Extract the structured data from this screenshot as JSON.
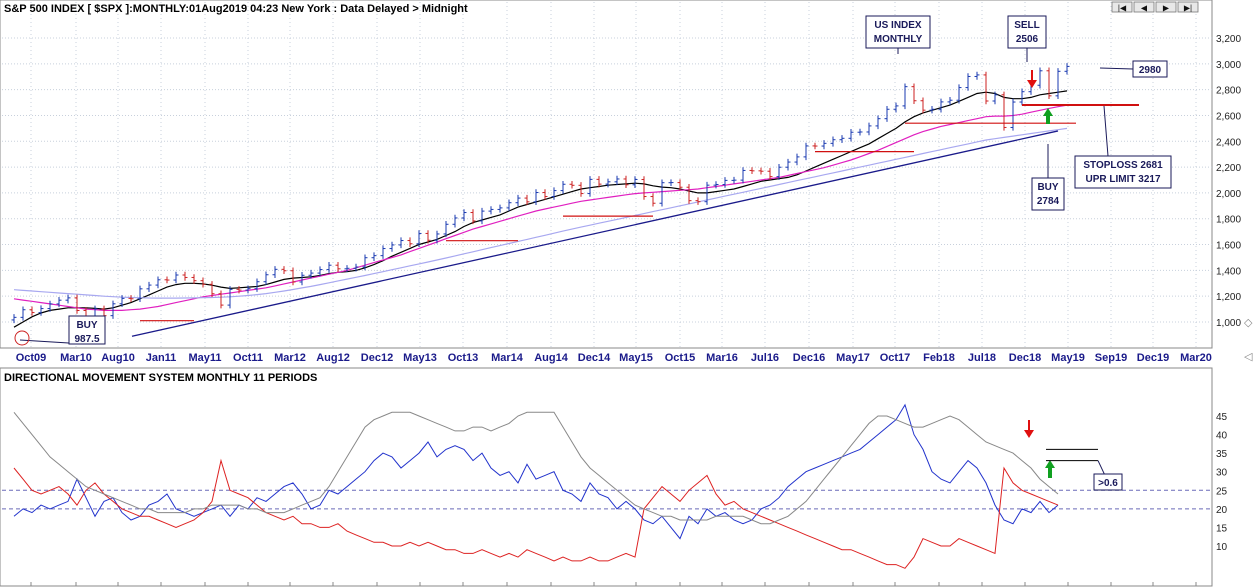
{
  "header": {
    "title": "S&P 500 INDEX [ $SPX ]:MONTHLY:01Aug2019 04:23 New York : Data Delayed > Midnight",
    "nav_buttons": [
      "|◀",
      "◀",
      "▶",
      "▶|"
    ]
  },
  "colors": {
    "price_bars": "#1a3ab0",
    "down_bars": "#cc2222",
    "ma_short": "#000000",
    "ma_mid": "#e020c0",
    "ma_long": "#a8a8f0",
    "trendline": "#1a1a8a",
    "support_lines": "#d01010",
    "dmi_plus": "#2233cc",
    "dmi_minus": "#dd2222",
    "adx": "#888888",
    "grid": "#c8d0dc",
    "box_fill": "#ffffff",
    "box_border": "#1a1a5a"
  },
  "chart_data": [
    {
      "type": "ohlc",
      "title": "S&P 500 INDEX [ $SPX ]:MONTHLY:01Aug2019 04:23 New York : Data Delayed > Midnight",
      "ylim": [
        850,
        3300
      ],
      "y_ticks": [
        "1,000",
        "1,200",
        "1,400",
        "1,600",
        "1,800",
        "2,000",
        "2,200",
        "2,400",
        "2,600",
        "2,800",
        "3,000",
        "3,200"
      ],
      "x_ticks": [
        "Oct09",
        "Mar10",
        "Aug10",
        "Jan11",
        "May11",
        "Oct11",
        "Mar12",
        "Aug12",
        "Dec12",
        "May13",
        "Oct13",
        "Mar14",
        "Aug14",
        "Dec14",
        "May15",
        "Oct15",
        "Mar16",
        "Jul16",
        "Dec16",
        "May17",
        "Oct17",
        "Feb18",
        "Jul18",
        "Dec18",
        "May19",
        "Sep19",
        "Dec19",
        "Mar20"
      ],
      "close": [
        1036,
        1095,
        1073,
        1104,
        1140,
        1169,
        1187,
        1089,
        1031,
        1102,
        1049,
        1141,
        1183,
        1180,
        1257,
        1286,
        1327,
        1325,
        1364,
        1345,
        1320,
        1292,
        1219,
        1131,
        1253,
        1247,
        1258,
        1312,
        1366,
        1408,
        1397,
        1310,
        1362,
        1379,
        1406,
        1440,
        1412,
        1416,
        1426,
        1498,
        1514,
        1569,
        1597,
        1631,
        1606,
        1686,
        1633,
        1682,
        1757,
        1806,
        1848,
        1783,
        1859,
        1872,
        1884,
        1924,
        1960,
        1931,
        2003,
        1972,
        2018,
        2067,
        2059,
        1995,
        2105,
        2068,
        2086,
        2108,
        2063,
        2104,
        1972,
        1920,
        2079,
        2080,
        2044,
        1940,
        1932,
        2060,
        2065,
        2097,
        2099,
        2174,
        2171,
        2168,
        2126,
        2199,
        2239,
        2279,
        2364,
        2363,
        2384,
        2412,
        2423,
        2470,
        2472,
        2519,
        2575,
        2648,
        2674,
        2823,
        2714,
        2641,
        2648,
        2705,
        2718,
        2816,
        2902,
        2914,
        2712,
        2760,
        2507,
        2704,
        2784,
        2834,
        2946,
        2752,
        2942,
        2980
      ],
      "series": [
        {
          "name": "",
          "role": "ma_short",
          "values": [
            960,
            1000,
            1040,
            1070,
            1090,
            1100,
            1110,
            1110,
            1110,
            1105,
            1100,
            1110,
            1130,
            1150,
            1180,
            1210,
            1240,
            1270,
            1290,
            1300,
            1300,
            1295,
            1285,
            1270,
            1260,
            1265,
            1270,
            1275,
            1290,
            1310,
            1330,
            1340,
            1345,
            1350,
            1360,
            1375,
            1385,
            1390,
            1400,
            1420,
            1445,
            1475,
            1510,
            1540,
            1570,
            1600,
            1620,
            1640,
            1670,
            1700,
            1740,
            1770,
            1790,
            1810,
            1830,
            1860,
            1890,
            1910,
            1930,
            1950,
            1970,
            1990,
            2010,
            2030,
            2040,
            2050,
            2060,
            2065,
            2070,
            2075,
            2070,
            2055,
            2045,
            2040,
            2030,
            2015,
            2000,
            2000,
            2010,
            2020,
            2030,
            2050,
            2070,
            2090,
            2100,
            2110,
            2120,
            2140,
            2170,
            2200,
            2230,
            2260,
            2290,
            2320,
            2350,
            2380,
            2420,
            2460,
            2500,
            2550,
            2590,
            2620,
            2640,
            2660,
            2680,
            2710,
            2740,
            2770,
            2780,
            2770,
            2740,
            2730,
            2730,
            2740,
            2760,
            2770,
            2780,
            2790
          ]
        },
        {
          "name": "",
          "role": "ma_mid",
          "values": [
            1180,
            1170,
            1160,
            1150,
            1140,
            1130,
            1120,
            1110,
            1100,
            1095,
            1090,
            1090,
            1090,
            1095,
            1100,
            1110,
            1120,
            1135,
            1150,
            1165,
            1180,
            1195,
            1205,
            1215,
            1225,
            1235,
            1245,
            1255,
            1265,
            1280,
            1295,
            1310,
            1325,
            1340,
            1355,
            1370,
            1385,
            1400,
            1420,
            1440,
            1460,
            1480,
            1500,
            1520,
            1545,
            1570,
            1595,
            1620,
            1645,
            1670,
            1695,
            1720,
            1740,
            1760,
            1780,
            1800,
            1820,
            1840,
            1860,
            1875,
            1890,
            1905,
            1920,
            1935,
            1945,
            1955,
            1965,
            1975,
            1985,
            1995,
            2000,
            2005,
            2010,
            2015,
            2020,
            2025,
            2030,
            2040,
            2050,
            2060,
            2070,
            2080,
            2090,
            2100,
            2110,
            2120,
            2135,
            2150,
            2165,
            2180,
            2195,
            2215,
            2235,
            2255,
            2280,
            2305,
            2330,
            2360,
            2390,
            2420,
            2450,
            2475,
            2495,
            2515,
            2530,
            2545,
            2560,
            2575,
            2590,
            2595,
            2595,
            2600,
            2610,
            2625,
            2640,
            2655,
            2668,
            2680
          ]
        },
        {
          "name": "",
          "role": "ma_long",
          "values": [
            1250,
            1245,
            1240,
            1235,
            1230,
            1225,
            1220,
            1215,
            1210,
            1205,
            1200,
            1196,
            1192,
            1190,
            1188,
            1186,
            1185,
            1185,
            1185,
            1186,
            1187,
            1188,
            1190,
            1192,
            1195,
            1200,
            1205,
            1212,
            1220,
            1230,
            1240,
            1252,
            1264,
            1276,
            1290,
            1304,
            1318,
            1332,
            1346,
            1360,
            1375,
            1390,
            1405,
            1420,
            1435,
            1450,
            1465,
            1480,
            1496,
            1512,
            1528,
            1544,
            1560,
            1576,
            1592,
            1608,
            1624,
            1640,
            1656,
            1672,
            1688,
            1704,
            1720,
            1735,
            1750,
            1765,
            1780,
            1795,
            1810,
            1825,
            1840,
            1855,
            1870,
            1885,
            1900,
            1915,
            1930,
            1945,
            1960,
            1975,
            1990,
            2005,
            2020,
            2035,
            2050,
            2065,
            2080,
            2095,
            2110,
            2125,
            2140,
            2155,
            2170,
            2185,
            2200,
            2215,
            2230,
            2245,
            2260,
            2275,
            2290,
            2305,
            2320,
            2335,
            2350,
            2365,
            2380,
            2395,
            2410,
            2420,
            2430,
            2440,
            2450,
            2460,
            2470,
            2480,
            2490,
            2500
          ]
        }
      ],
      "trendline": {
        "start": [
          0,
          890
        ],
        "end": [
          116,
          2480
        ]
      },
      "support_lines": [
        {
          "from": 14,
          "to": 20,
          "price": 1010
        },
        {
          "from": 48,
          "to": 56,
          "price": 1630
        },
        {
          "from": 61,
          "to": 71,
          "price": 1820
        },
        {
          "from": 89,
          "to": 100,
          "price": 2320
        },
        {
          "from": 99,
          "to": 118,
          "price": 2540
        },
        {
          "from": 112,
          "to": 125,
          "price": 2681
        }
      ],
      "annotations": [
        {
          "id": "buy1",
          "lines": [
            "BUY",
            "987.5"
          ]
        },
        {
          "id": "index",
          "lines": [
            "US INDEX",
            "MONTHLY"
          ]
        },
        {
          "id": "sell",
          "lines": [
            "SELL",
            "2506"
          ]
        },
        {
          "id": "price",
          "lines": [
            "2980"
          ]
        },
        {
          "id": "stoploss",
          "lines": [
            "STOPLOSS 2681",
            "UPR LIMIT 3217"
          ]
        },
        {
          "id": "buy2",
          "lines": [
            "BUY",
            "2784"
          ]
        }
      ]
    },
    {
      "type": "line",
      "title": "DIRECTIONAL MOVEMENT SYSTEM MONTHLY 11 PERIODS",
      "ylim": [
        0,
        50
      ],
      "y_ticks": [
        "10",
        "15",
        "20",
        "25",
        "30",
        "35",
        "40",
        "45"
      ],
      "reference_lines": [
        20,
        25
      ],
      "series": [
        {
          "name": "",
          "role": "dmi_plus",
          "values": [
            18,
            20,
            19,
            21,
            20,
            21,
            22,
            28,
            23,
            18,
            22,
            23,
            19,
            17,
            18,
            21,
            22,
            24,
            20,
            19,
            18,
            19,
            20,
            21,
            18,
            21,
            20,
            23,
            22,
            24,
            26,
            27,
            24,
            20,
            21,
            25,
            24,
            26,
            28,
            30,
            33,
            35,
            34,
            31,
            33,
            35,
            38,
            34,
            36,
            37,
            36,
            33,
            35,
            31,
            29,
            30,
            27,
            32,
            28,
            29,
            30,
            25,
            24,
            22,
            27,
            24,
            23,
            20,
            22,
            20,
            17,
            16,
            18,
            15,
            12,
            18,
            16,
            20,
            18,
            19,
            17,
            16,
            17,
            20,
            21,
            23,
            26,
            28,
            30,
            31,
            32,
            33,
            34,
            35,
            36,
            38,
            40,
            42,
            44,
            48,
            40,
            36,
            30,
            28,
            27,
            30,
            33,
            31,
            27,
            21,
            17,
            16,
            20,
            19,
            22,
            19,
            21
          ]
        },
        {
          "name": "",
          "role": "dmi_minus",
          "values": [
            31,
            28,
            25,
            24,
            25,
            26,
            24,
            21,
            25,
            27,
            24,
            22,
            20,
            19,
            18,
            18,
            17,
            16,
            15,
            16,
            17,
            19,
            22,
            33,
            25,
            24,
            23,
            21,
            19,
            18,
            17,
            18,
            16,
            16,
            15,
            15,
            16,
            14,
            13,
            12,
            11,
            11,
            10,
            10,
            11,
            10,
            11,
            10,
            9,
            9,
            8,
            8,
            9,
            8,
            7,
            8,
            7,
            9,
            8,
            7,
            6,
            7,
            6,
            6,
            7,
            6,
            6,
            7,
            8,
            7,
            20,
            23,
            26,
            24,
            22,
            25,
            27,
            29,
            24,
            21,
            22,
            20,
            19,
            18,
            17,
            16,
            15,
            14,
            13,
            12,
            11,
            10,
            9,
            9,
            8,
            7,
            6,
            5,
            5,
            4,
            7,
            12,
            11,
            10,
            10,
            12,
            11,
            10,
            9,
            8,
            31,
            27,
            25,
            24,
            23,
            22,
            21
          ]
        },
        {
          "name": "",
          "role": "adx",
          "values": [
            46,
            43,
            40,
            37,
            34,
            32,
            30,
            28,
            26,
            25,
            24,
            23,
            22,
            21,
            20,
            20,
            19,
            19,
            19,
            19,
            20,
            20,
            21,
            21,
            21,
            21,
            20,
            20,
            19,
            19,
            19,
            20,
            21,
            22,
            23,
            26,
            30,
            34,
            38,
            42,
            44,
            45,
            46,
            46,
            46,
            45,
            44,
            43,
            42,
            41,
            41,
            42,
            42,
            41,
            42,
            43,
            45,
            46,
            46,
            46,
            46,
            42,
            38,
            34,
            31,
            29,
            27,
            25,
            23,
            21,
            20,
            19,
            18,
            18,
            17,
            17,
            17,
            17,
            18,
            18,
            18,
            18,
            17,
            16,
            16,
            17,
            18,
            20,
            22,
            25,
            28,
            31,
            34,
            37,
            40,
            43,
            45,
            45,
            44,
            43,
            42,
            42,
            43,
            44,
            45,
            44,
            42,
            40,
            38,
            37,
            36,
            35,
            33,
            31,
            28,
            26,
            24
          ]
        }
      ],
      "markers": [
        {
          "id": "level-label",
          "text": ">0.6"
        }
      ]
    }
  ]
}
